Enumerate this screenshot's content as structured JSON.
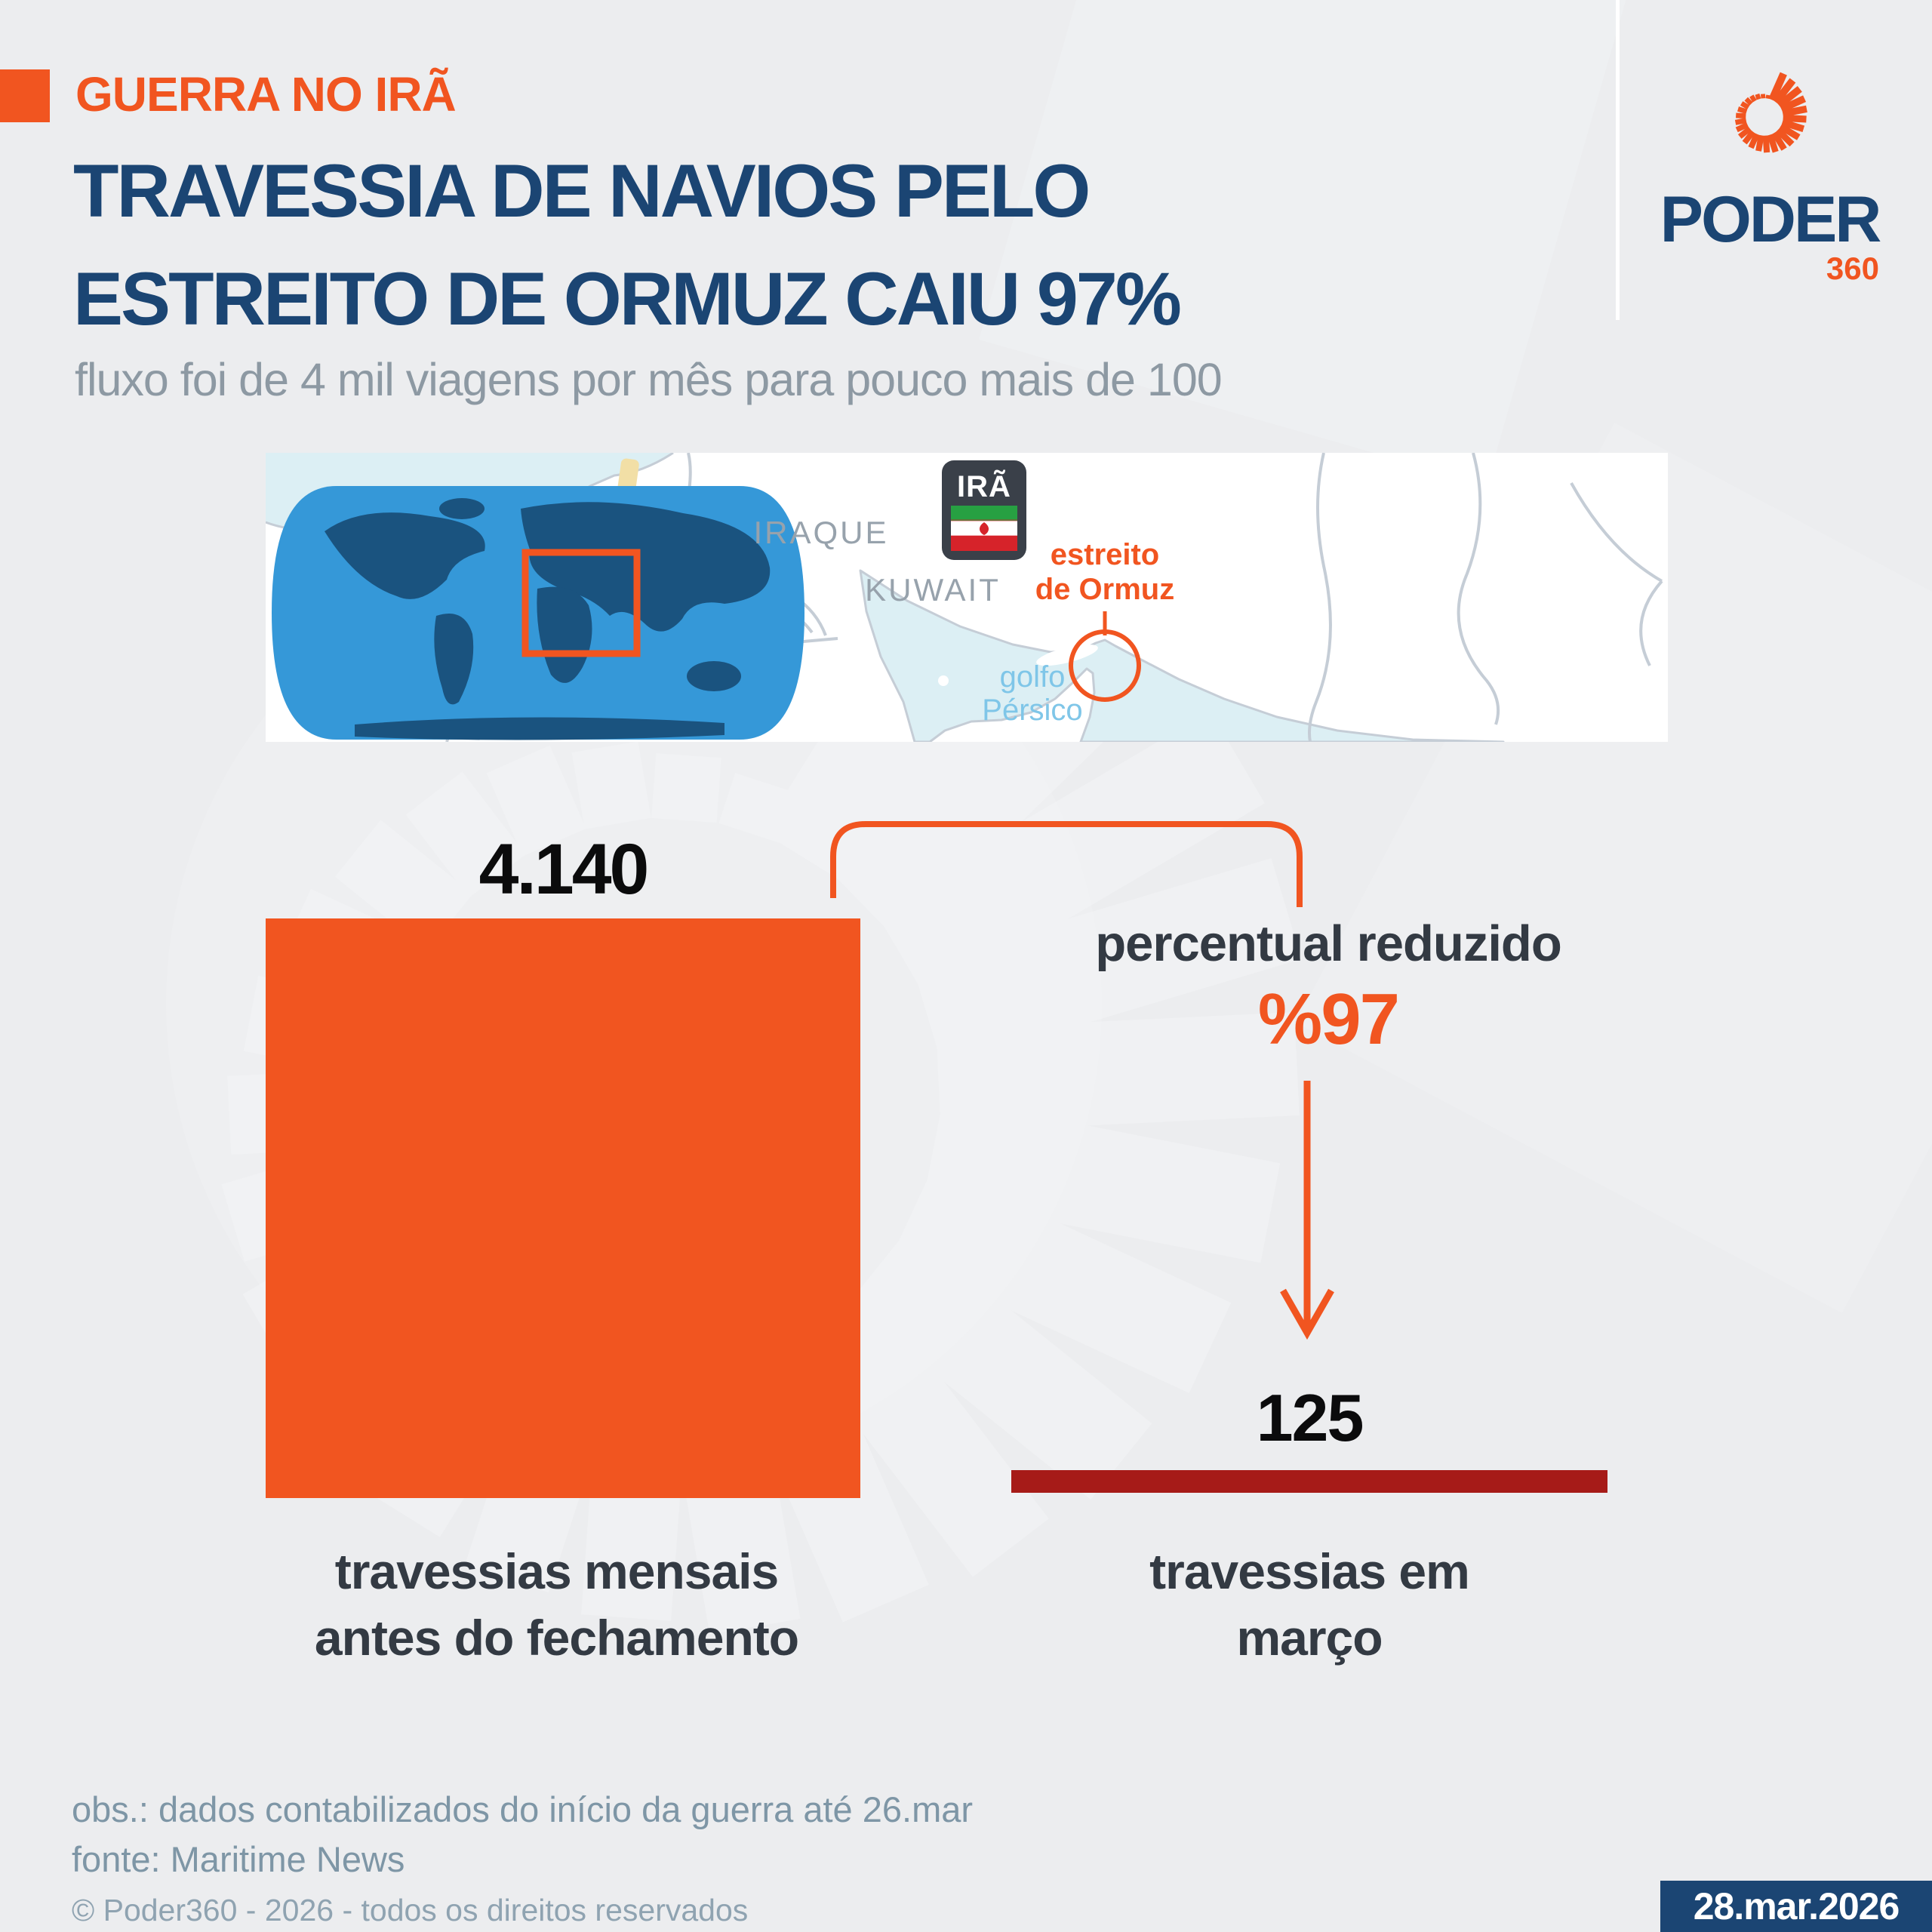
{
  "colors": {
    "orange": "#F15520",
    "navy": "#1B4573",
    "red_bar": "#A61B18",
    "background": "#ECEDEF",
    "watermark_ray": "#F3F4F6",
    "dark_text": "#333A43",
    "black_text": "#0B0B0C",
    "subtitle_gray": "#8D99A3",
    "footer_slate": "#7E96A6",
    "copyright_gray": "#8FA3B1",
    "map_label_gray": "#97A2AC",
    "map_sea": "#DCEFF4",
    "world_ocean": "#3598D8",
    "world_land": "#1A537F",
    "map_border": "#C5CDD6",
    "gulf_label_blue": "#7FC6E8",
    "iran_badge_dark": "#3A4049",
    "flag_green": "#27A042",
    "flag_red": "#D6232A"
  },
  "header": {
    "tag": "GUERRA NO IRÃ",
    "title_line1": "TRAVESSIA DE NAVIOS PELO",
    "title_line2": "ESTREITO DE ORMUZ CAIU 97%",
    "subtitle": "fluxo foi de 4 mil viagens por mês para pouco mais de 100"
  },
  "logo": {
    "name": "PODER",
    "suffix": "360"
  },
  "map": {
    "labels": {
      "iraq": "IRAQUE",
      "kuwait": "KUWAIT",
      "iran": "IRÃ",
      "strait_line1": "estreito",
      "strait_line2": "de Ormuz",
      "gulf_line1": "golfo",
      "gulf_line2": "Pérsico"
    }
  },
  "chart_data": {
    "type": "bar",
    "title": "TRAVESSIA DE NAVIOS PELO ESTREITO DE ORMUZ CAIU 97%",
    "subtitle": "fluxo foi de 4 mil viagens por mês para pouco mais de 100",
    "categories": [
      "travessias mensais antes do fechamento",
      "travessias em março"
    ],
    "values": [
      4140,
      125
    ],
    "value_labels": [
      "4.140",
      "125"
    ],
    "bar_colors": [
      "#F15520",
      "#A61B18"
    ],
    "annotation": {
      "label": "percentual reduzido",
      "value": "%97"
    },
    "note": "obs.: dados contabilizados do início da guerra até 26.mar",
    "source": "fonte: Maritime News"
  },
  "chart": {
    "before": {
      "value": "4.140",
      "caption_line1": "travessias mensais",
      "caption_line2": "antes do fechamento"
    },
    "reduction": {
      "label": "percentual reduzido",
      "value": "%97"
    },
    "after": {
      "value": "125",
      "caption_line1": "travessias em",
      "caption_line2": "março"
    }
  },
  "footer": {
    "note": "obs.: dados contabilizados do início da guerra até 26.mar",
    "source": "fonte: Maritime News",
    "copyright": "© Poder360 - 2026 - todos os direitos reservados",
    "date": "28.mar.2026"
  }
}
